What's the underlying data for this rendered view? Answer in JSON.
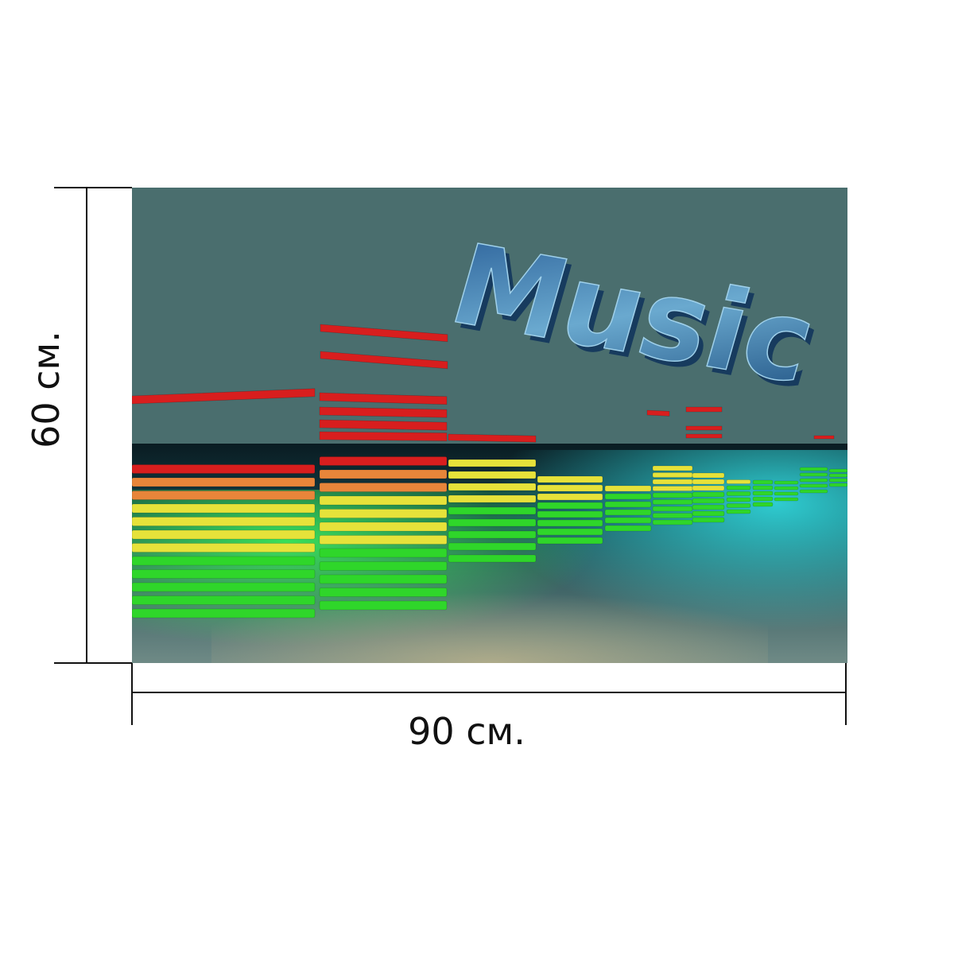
{
  "dimensions": {
    "height_label": "60 см.",
    "width_label": "90 см."
  },
  "artwork": {
    "word": "Music",
    "colors": {
      "background": "#4a6e6e",
      "floor_glow": "#2fd0d8",
      "red": "#d81e1e",
      "orange": "#e8853a",
      "yellow": "#e6e23a",
      "green": "#2fd62a",
      "letters": "#2e6fa4"
    }
  }
}
